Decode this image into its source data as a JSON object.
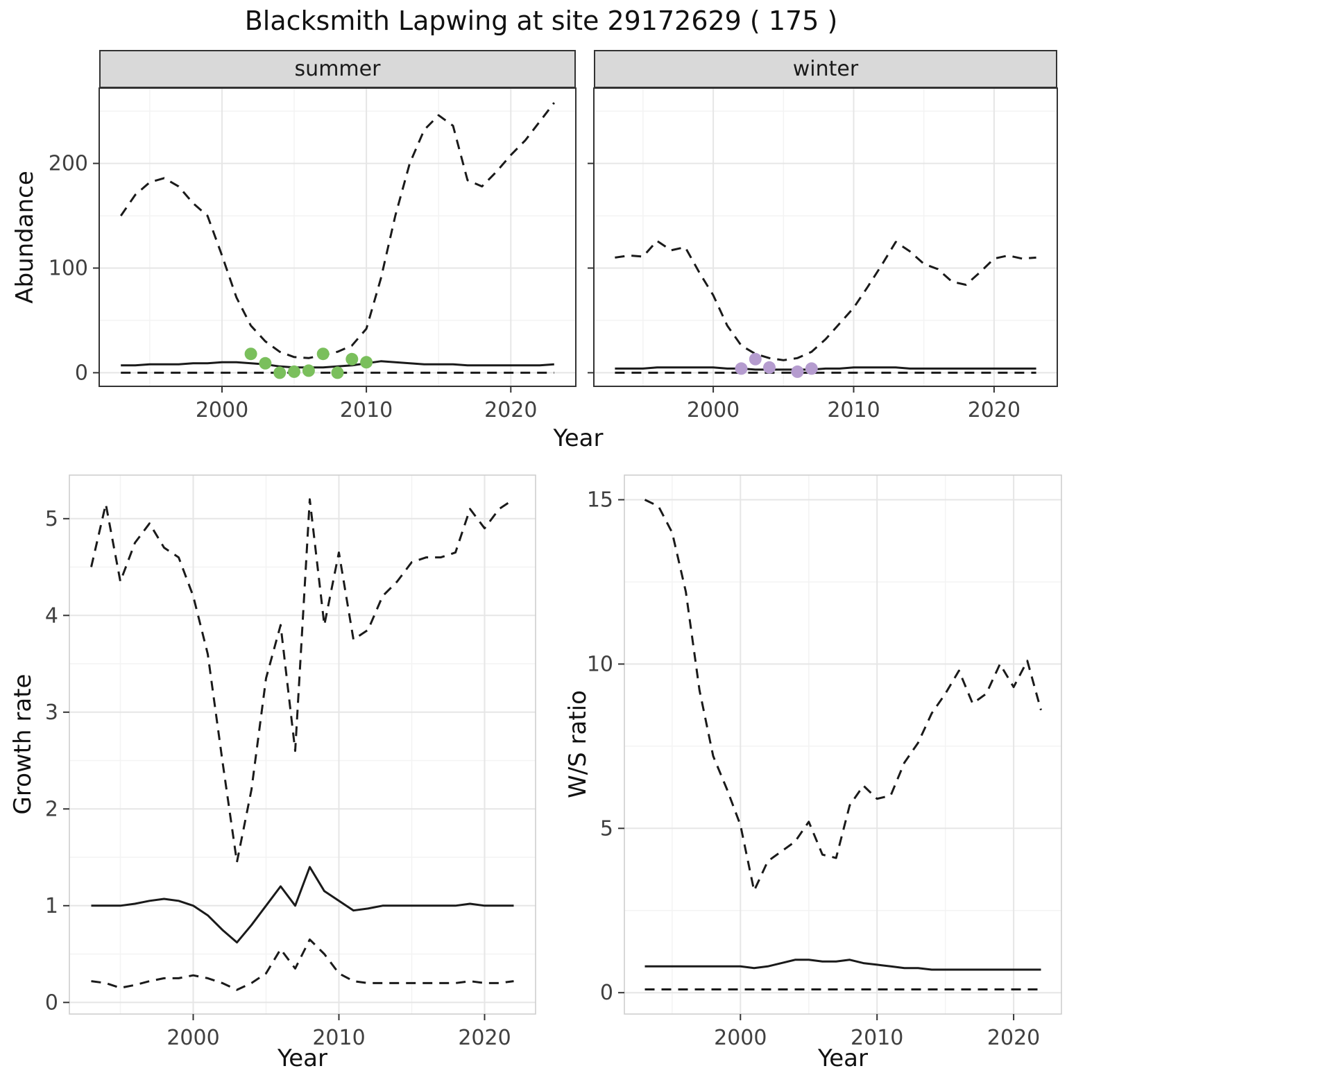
{
  "title": "Blacksmith Lapwing at site 29172629 ( 175 )",
  "colors": {
    "line": "#1a1a1a",
    "summer_points": "#7abf5c",
    "winter_points": "#b59ccf",
    "grid_major": "#e6e6e6",
    "grid_minor": "#f3f3f3",
    "strip_bg": "#d9d9d9",
    "panel_border_dark": "#333333",
    "panel_border_light": "#cccccc",
    "tick_text": "#404040"
  },
  "chart_data": [
    {
      "id": "abundance-summer",
      "type": "line",
      "facet_label": "summer",
      "xlabel": "Year",
      "ylabel": "Abundance",
      "x": [
        1993,
        1994,
        1995,
        1996,
        1997,
        1998,
        1999,
        2000,
        2001,
        2002,
        2003,
        2004,
        2005,
        2006,
        2007,
        2008,
        2009,
        2010,
        2011,
        2012,
        2013,
        2014,
        2015,
        2016,
        2017,
        2018,
        2019,
        2020,
        2021,
        2022,
        2023
      ],
      "series": [
        {
          "name": "upper-ci",
          "style": "dashed",
          "values": [
            150,
            170,
            182,
            186,
            178,
            162,
            150,
            112,
            72,
            45,
            30,
            20,
            15,
            14,
            17,
            20,
            26,
            42,
            90,
            150,
            200,
            232,
            246,
            236,
            184,
            178,
            192,
            208,
            222,
            240,
            258
          ]
        },
        {
          "name": "median",
          "style": "solid",
          "values": [
            7,
            7,
            8,
            8,
            8,
            9,
            9,
            10,
            10,
            9,
            8,
            6,
            5,
            5,
            5,
            6,
            7,
            9,
            11,
            10,
            9,
            8,
            8,
            8,
            7,
            7,
            7,
            7,
            7,
            7,
            8
          ]
        },
        {
          "name": "lower-ci",
          "style": "dashed",
          "values": [
            0,
            0,
            0,
            0,
            0,
            0,
            0,
            0,
            0,
            0,
            0,
            0,
            0,
            0,
            0,
            0,
            0,
            0,
            0,
            0,
            0,
            0,
            0,
            0,
            0,
            0,
            0,
            0,
            0,
            0,
            0
          ]
        }
      ],
      "points": {
        "name": "summer-observations",
        "color_key": "summer_points",
        "x": [
          2002,
          2003,
          2004,
          2005,
          2006,
          2007,
          2008,
          2009,
          2010
        ],
        "y": [
          18,
          9,
          0,
          1,
          2,
          18,
          0,
          13,
          10
        ]
      },
      "xticks": [
        2000,
        2010,
        2020
      ],
      "yticks": [
        0,
        100,
        200
      ],
      "xlim": [
        1991.5,
        2024.5
      ],
      "ylim": [
        -13,
        272
      ]
    },
    {
      "id": "abundance-winter",
      "type": "line",
      "facet_label": "winter",
      "xlabel": "Year",
      "ylabel": "Abundance",
      "x": [
        1993,
        1994,
        1995,
        1996,
        1997,
        1998,
        1999,
        2000,
        2001,
        2002,
        2003,
        2004,
        2005,
        2006,
        2007,
        2008,
        2009,
        2010,
        2011,
        2012,
        2013,
        2014,
        2015,
        2016,
        2017,
        2018,
        2019,
        2020,
        2021,
        2022,
        2023
      ],
      "series": [
        {
          "name": "upper-ci",
          "style": "dashed",
          "values": [
            110,
            112,
            111,
            126,
            117,
            120,
            96,
            74,
            45,
            26,
            18,
            14,
            12,
            14,
            20,
            32,
            47,
            62,
            82,
            103,
            125,
            116,
            104,
            99,
            87,
            84,
            96,
            109,
            112,
            109,
            110
          ]
        },
        {
          "name": "median",
          "style": "solid",
          "values": [
            4,
            4,
            4,
            5,
            5,
            5,
            5,
            5,
            4,
            4,
            3,
            3,
            3,
            3,
            3,
            4,
            4,
            5,
            5,
            5,
            5,
            4,
            4,
            4,
            4,
            4,
            4,
            4,
            4,
            4,
            4
          ]
        },
        {
          "name": "lower-ci",
          "style": "dashed",
          "values": [
            0,
            0,
            0,
            0,
            0,
            0,
            0,
            0,
            0,
            0,
            0,
            0,
            0,
            0,
            0,
            0,
            0,
            0,
            0,
            0,
            0,
            0,
            0,
            0,
            0,
            0,
            0,
            0,
            0,
            0,
            0
          ]
        }
      ],
      "points": {
        "name": "winter-observations",
        "color_key": "winter_points",
        "x": [
          2002,
          2003,
          2004,
          2006,
          2007
        ],
        "y": [
          4,
          13,
          5,
          1,
          4
        ]
      },
      "xticks": [
        2000,
        2010,
        2020
      ],
      "yticks": [
        0,
        100,
        200
      ],
      "xlim": [
        1991.5,
        2024.5
      ],
      "ylim": [
        -13,
        272
      ]
    },
    {
      "id": "growth-rate",
      "type": "line",
      "facet_label": "",
      "xlabel": "Year",
      "ylabel": "Growth rate",
      "x": [
        1993,
        1994,
        1995,
        1996,
        1997,
        1998,
        1999,
        2000,
        2001,
        2002,
        2003,
        2004,
        2005,
        2006,
        2007,
        2008,
        2009,
        2010,
        2011,
        2012,
        2013,
        2014,
        2015,
        2016,
        2017,
        2018,
        2019,
        2020,
        2021,
        2022
      ],
      "series": [
        {
          "name": "upper-ci",
          "style": "dashed",
          "values": [
            4.5,
            5.15,
            4.35,
            4.75,
            4.95,
            4.7,
            4.6,
            4.2,
            3.6,
            2.5,
            1.45,
            2.2,
            3.35,
            3.9,
            2.6,
            5.2,
            3.9,
            4.65,
            3.75,
            3.85,
            4.2,
            4.35,
            4.55,
            4.6,
            4.6,
            4.65,
            5.1,
            4.9,
            5.1,
            5.2
          ]
        },
        {
          "name": "median",
          "style": "solid",
          "values": [
            1.0,
            1.0,
            1.0,
            1.02,
            1.05,
            1.07,
            1.05,
            1.0,
            0.9,
            0.75,
            0.62,
            0.8,
            1.0,
            1.2,
            1.0,
            1.4,
            1.15,
            1.05,
            0.95,
            0.97,
            1.0,
            1.0,
            1.0,
            1.0,
            1.0,
            1.0,
            1.02,
            1.0,
            1.0,
            1.0
          ]
        },
        {
          "name": "lower-ci",
          "style": "dashed",
          "values": [
            0.22,
            0.2,
            0.15,
            0.18,
            0.22,
            0.25,
            0.25,
            0.28,
            0.25,
            0.2,
            0.13,
            0.2,
            0.3,
            0.55,
            0.35,
            0.65,
            0.5,
            0.3,
            0.22,
            0.2,
            0.2,
            0.2,
            0.2,
            0.2,
            0.2,
            0.2,
            0.22,
            0.2,
            0.2,
            0.22
          ]
        }
      ],
      "points": null,
      "xticks": [
        2000,
        2010,
        2020
      ],
      "yticks": [
        0,
        1,
        2,
        3,
        4,
        5
      ],
      "xlim": [
        1991.5,
        2023.5
      ],
      "ylim": [
        -0.12,
        5.45
      ]
    },
    {
      "id": "ws-ratio",
      "type": "line",
      "facet_label": "",
      "xlabel": "Year",
      "ylabel": "W/S ratio",
      "x": [
        1993,
        1994,
        1995,
        1996,
        1997,
        1998,
        1999,
        2000,
        2001,
        2002,
        2003,
        2004,
        2005,
        2006,
        2007,
        2008,
        2009,
        2010,
        2011,
        2012,
        2013,
        2014,
        2015,
        2016,
        2017,
        2018,
        2019,
        2020,
        2021,
        2022
      ],
      "series": [
        {
          "name": "upper-ci",
          "style": "dashed",
          "values": [
            15.0,
            14.8,
            14.0,
            12.2,
            9.2,
            7.2,
            6.2,
            5.1,
            3.1,
            4.0,
            4.3,
            4.6,
            5.2,
            4.2,
            4.1,
            5.7,
            6.3,
            5.9,
            6.0,
            7.0,
            7.6,
            8.5,
            9.1,
            9.8,
            8.8,
            9.1,
            10.0,
            9.3,
            10.1,
            8.6
          ]
        },
        {
          "name": "median",
          "style": "solid",
          "values": [
            0.8,
            0.8,
            0.8,
            0.8,
            0.8,
            0.8,
            0.8,
            0.8,
            0.75,
            0.8,
            0.9,
            1.0,
            1.0,
            0.95,
            0.95,
            1.0,
            0.9,
            0.85,
            0.8,
            0.75,
            0.75,
            0.7,
            0.7,
            0.7,
            0.7,
            0.7,
            0.7,
            0.7,
            0.7,
            0.7
          ]
        },
        {
          "name": "lower-ci",
          "style": "dashed",
          "values": [
            0.1,
            0.1,
            0.1,
            0.1,
            0.1,
            0.1,
            0.1,
            0.1,
            0.1,
            0.1,
            0.1,
            0.1,
            0.1,
            0.1,
            0.1,
            0.1,
            0.1,
            0.1,
            0.1,
            0.1,
            0.1,
            0.1,
            0.1,
            0.1,
            0.1,
            0.1,
            0.1,
            0.1,
            0.1,
            0.1
          ]
        }
      ],
      "points": null,
      "xticks": [
        2000,
        2010,
        2020
      ],
      "yticks": [
        0,
        5,
        10,
        15
      ],
      "xlim": [
        1991.5,
        2023.5
      ],
      "ylim": [
        -0.65,
        15.75
      ]
    }
  ]
}
